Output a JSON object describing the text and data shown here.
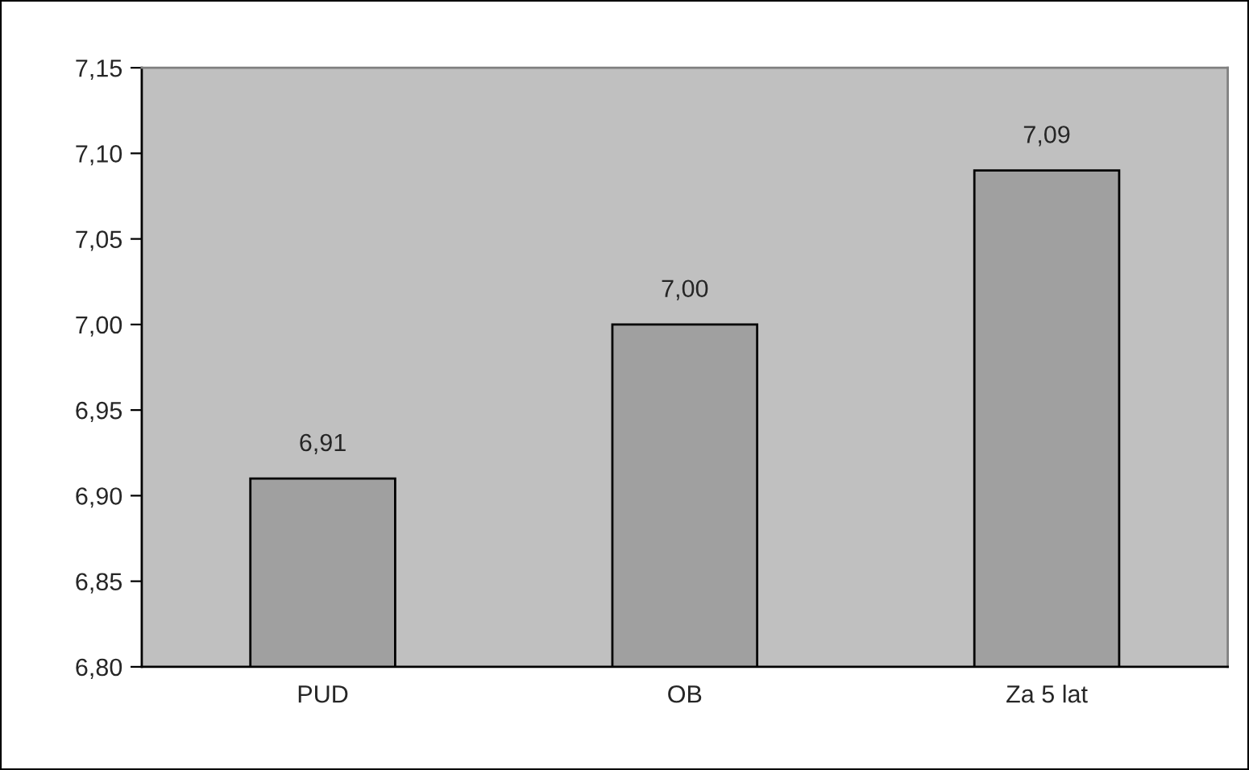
{
  "chart_data": {
    "type": "bar",
    "categories": [
      "PUD",
      "OB",
      "Za 5 lat"
    ],
    "values": [
      6.91,
      7.0,
      7.09
    ],
    "value_labels": [
      "6,91",
      "7,00",
      "7,09"
    ],
    "color": "#a0a0a0",
    "ylim": [
      6.8,
      7.15
    ],
    "yticks": [
      {
        "value": 6.8,
        "label": "6,80"
      },
      {
        "value": 6.85,
        "label": "6,85"
      },
      {
        "value": 6.9,
        "label": "6,90"
      },
      {
        "value": 6.95,
        "label": "6,95"
      },
      {
        "value": 7.0,
        "label": "7,00"
      },
      {
        "value": 7.05,
        "label": "7,05"
      },
      {
        "value": 7.1,
        "label": "7,10"
      },
      {
        "value": 7.15,
        "label": "7,15"
      }
    ],
    "grid": false,
    "legend": false
  }
}
